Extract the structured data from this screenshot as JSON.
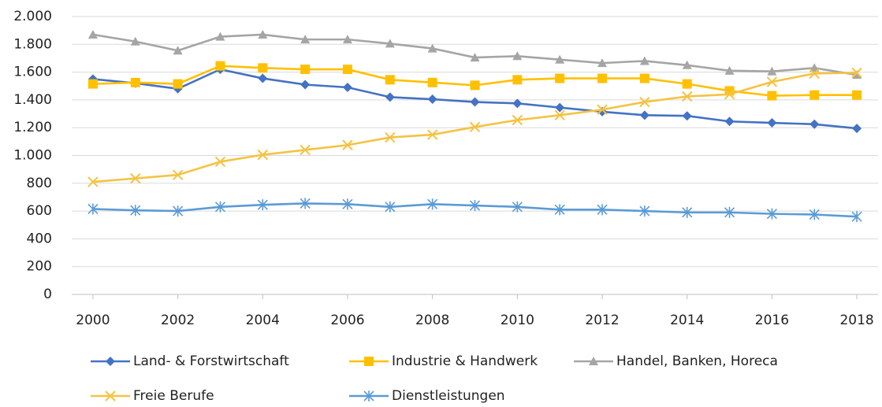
{
  "chart_data": {
    "type": "line",
    "x": [
      2000,
      2001,
      2002,
      2003,
      2004,
      2005,
      2006,
      2007,
      2008,
      2009,
      2010,
      2011,
      2012,
      2013,
      2014,
      2015,
      2016,
      2017,
      2018
    ],
    "xlim": [
      1999.5,
      2018.5
    ],
    "xticks": [
      2000,
      2002,
      2004,
      2006,
      2008,
      2010,
      2012,
      2014,
      2016,
      2018
    ],
    "ylim": [
      0,
      2000
    ],
    "yticks": [
      0,
      200,
      400,
      600,
      800,
      {
        "value": 1000,
        "label": "1.000"
      },
      {
        "value": 1200,
        "label": "1.200"
      },
      {
        "value": 1400,
        "label": "1.400"
      },
      {
        "value": 1600,
        "label": "1.600"
      },
      {
        "value": 1800,
        "label": "1.800"
      },
      {
        "value": 2000,
        "label": "2.000"
      }
    ],
    "grid": true,
    "legend": "bottom",
    "series": [
      {
        "name": "Land- & Forstwirtschaft",
        "color": "#4472c4",
        "marker": "diamond",
        "values": [
          1550,
          1520,
          1480,
          1620,
          1555,
          1510,
          1490,
          1420,
          1405,
          1385,
          1375,
          1345,
          1315,
          1290,
          1285,
          1245,
          1235,
          1225,
          1195
        ]
      },
      {
        "name": "Industrie & Handwerk",
        "color": "#ffc000",
        "marker": "square",
        "values": [
          1515,
          1525,
          1515,
          1645,
          1630,
          1620,
          1620,
          1545,
          1525,
          1505,
          1545,
          1555,
          1555,
          1555,
          1515,
          1465,
          1430,
          1435,
          1435
        ]
      },
      {
        "name": "Handel, Banken, Horeca",
        "color": "#a5a5a5",
        "marker": "triangle",
        "values": [
          1870,
          1820,
          1755,
          1855,
          1870,
          1835,
          1835,
          1805,
          1770,
          1705,
          1715,
          1690,
          1665,
          1680,
          1650,
          1610,
          1605,
          1630,
          1580
        ]
      },
      {
        "name": "Freie Berufe",
        "color": "#f5c242",
        "marker": "x",
        "values": [
          810,
          835,
          860,
          955,
          1005,
          1040,
          1075,
          1130,
          1150,
          1205,
          1255,
          1290,
          1330,
          1385,
          1425,
          1440,
          1530,
          1590,
          1595
        ]
      },
      {
        "name": "Dienstleistungen",
        "color": "#5b9bd5",
        "marker": "asterisk",
        "values": [
          615,
          605,
          600,
          630,
          645,
          655,
          650,
          630,
          650,
          640,
          630,
          610,
          610,
          600,
          590,
          590,
          580,
          575,
          560
        ]
      }
    ]
  }
}
